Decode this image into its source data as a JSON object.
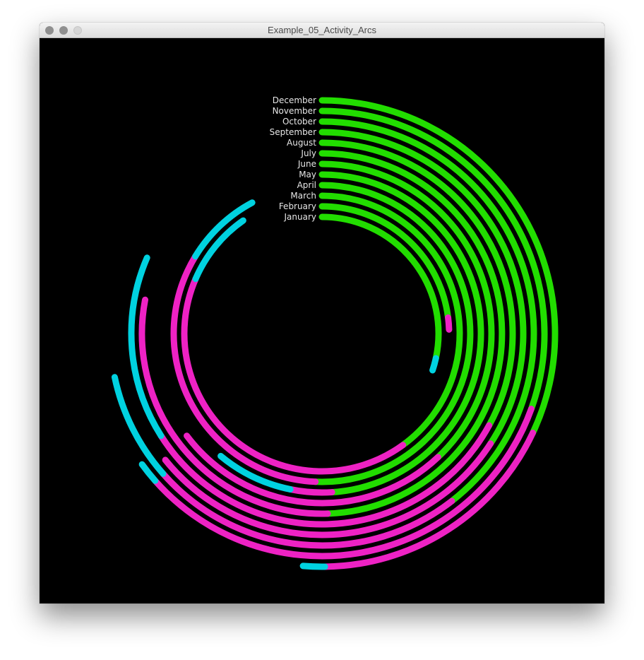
{
  "window": {
    "title": "Example_05_Activity_Arcs",
    "buttons": [
      "close",
      "minimize",
      "zoom"
    ]
  },
  "colors": {
    "background": "#000000",
    "label": "#e6e6e6",
    "segments": {
      "green": "#22dd00",
      "magenta": "#ee22c4",
      "cyan": "#00d2e0"
    }
  },
  "chart_data": {
    "type": "radial-arcs",
    "note_units": "each month's arc is a sequence of colored segments; values are fractions of a full turn, clockwise from 12 o'clock",
    "months": [
      {
        "label": "January",
        "segments": [
          {
            "color": "green",
            "turn": 0.284
          },
          {
            "color": "cyan",
            "turn": 0.017
          }
        ]
      },
      {
        "label": "February",
        "segments": [
          {
            "color": "green",
            "turn": 0.23
          },
          {
            "color": "magenta",
            "turn": 0.015
          }
        ]
      },
      {
        "label": "March",
        "segments": [
          {
            "color": "green",
            "turn": 0.4
          },
          {
            "color": "magenta",
            "turn": 0.415
          },
          {
            "color": "cyan",
            "turn": 0.088
          }
        ]
      },
      {
        "label": "April",
        "segments": [
          {
            "color": "green",
            "turn": 0.507
          },
          {
            "color": "magenta",
            "turn": 0.33
          },
          {
            "color": "cyan",
            "turn": 0.085
          }
        ]
      },
      {
        "label": "May",
        "segments": [
          {
            "color": "green",
            "turn": 0.49
          },
          {
            "color": "magenta",
            "turn": 0.042
          },
          {
            "color": "cyan",
            "turn": 0.078
          }
        ]
      },
      {
        "label": "June",
        "segments": [
          {
            "color": "green",
            "turn": 0.38
          },
          {
            "color": "magenta",
            "turn": 0.267
          }
        ]
      },
      {
        "label": "July",
        "segments": [
          {
            "color": "green",
            "turn": 0.495
          },
          {
            "color": "magenta",
            "turn": 0.285
          }
        ]
      },
      {
        "label": "August",
        "segments": [
          {
            "color": "green",
            "turn": 0.33
          },
          {
            "color": "magenta",
            "turn": 0.33
          },
          {
            "color": "cyan",
            "turn": 0.155
          }
        ]
      },
      {
        "label": "September",
        "segments": [
          {
            "color": "green",
            "turn": 0.342
          },
          {
            "color": "magenta",
            "turn": 0.3
          }
        ]
      },
      {
        "label": "October",
        "segments": [
          {
            "color": "green",
            "turn": 0.395
          },
          {
            "color": "magenta",
            "turn": 0.24
          },
          {
            "color": "cyan",
            "turn": 0.082
          }
        ]
      },
      {
        "label": "November",
        "segments": [
          {
            "color": "green",
            "turn": 0.305
          },
          {
            "color": "magenta",
            "turn": 0.33
          },
          {
            "color": "cyan",
            "turn": 0.015
          }
        ]
      },
      {
        "label": "December",
        "segments": [
          {
            "color": "green",
            "turn": 0.32
          },
          {
            "color": "magenta",
            "turn": 0.178
          },
          {
            "color": "cyan",
            "turn": 0.015
          }
        ]
      }
    ]
  }
}
